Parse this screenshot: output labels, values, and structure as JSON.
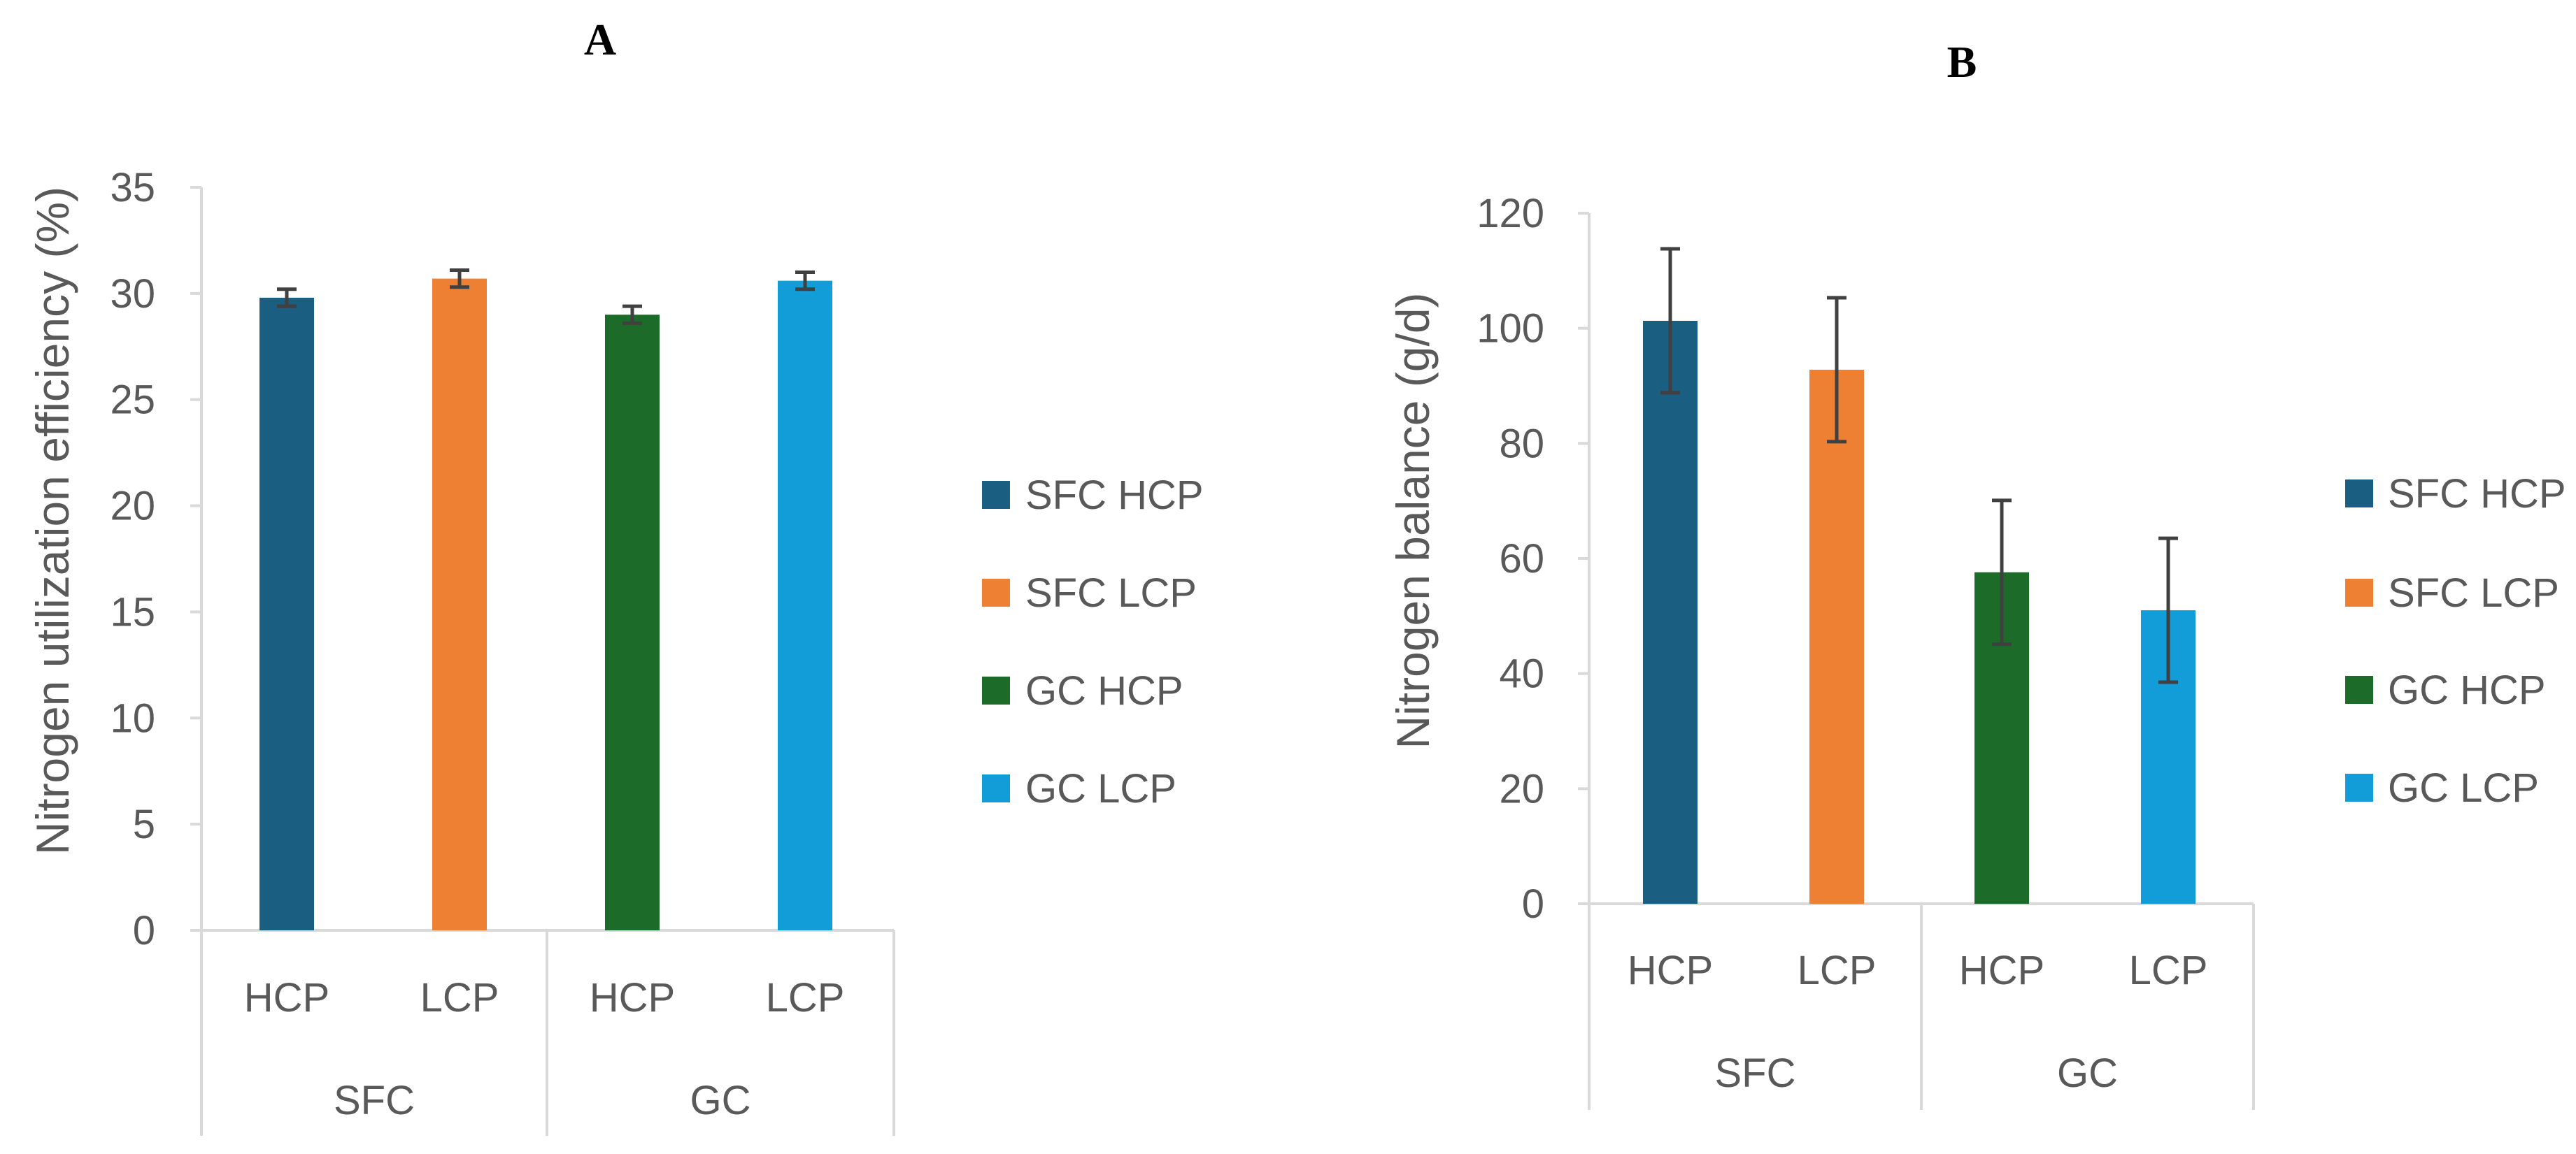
{
  "chart_data": [
    {
      "type": "bar",
      "panel_label": "A",
      "title": "",
      "xlabel": "",
      "ylabel": "Nitrogen utilization efficiency (%)",
      "ylim": [
        0,
        35
      ],
      "yticks": [
        0,
        5,
        10,
        15,
        20,
        25,
        30,
        35
      ],
      "grid": false,
      "legend_position": "right",
      "groups": [
        {
          "label": "SFC",
          "categories": [
            "HCP",
            "LCP"
          ]
        },
        {
          "label": "GC",
          "categories": [
            "HCP",
            "LCP"
          ]
        }
      ],
      "series": [
        {
          "name": "SFC HCP",
          "color": "#1a5e82",
          "value": 29.8,
          "error": 0.4
        },
        {
          "name": "SFC LCP",
          "color": "#ee8033",
          "value": 30.7,
          "error": 0.4
        },
        {
          "name": "GC HCP",
          "color": "#1c6b29",
          "value": 29.0,
          "error": 0.4
        },
        {
          "name": "GC LCP",
          "color": "#129dd8",
          "value": 30.6,
          "error": 0.4
        }
      ]
    },
    {
      "type": "bar",
      "panel_label": "B",
      "title": "",
      "xlabel": "",
      "ylabel": "Nitrogen balance (g/d)",
      "ylim": [
        0,
        120
      ],
      "yticks": [
        0,
        20,
        40,
        60,
        80,
        100,
        120
      ],
      "grid": false,
      "legend_position": "right",
      "groups": [
        {
          "label": "SFC",
          "categories": [
            "HCP",
            "LCP"
          ]
        },
        {
          "label": "GC",
          "categories": [
            "HCP",
            "LCP"
          ]
        }
      ],
      "series": [
        {
          "name": "SFC HCP",
          "color": "#1a5e82",
          "value": 101.3,
          "error": 12.5
        },
        {
          "name": "SFC LCP",
          "color": "#ee8033",
          "value": 92.8,
          "error": 12.5
        },
        {
          "name": "GC HCP",
          "color": "#1c6b29",
          "value": 57.6,
          "error": 12.5
        },
        {
          "name": "GC LCP",
          "color": "#129dd8",
          "value": 51.0,
          "error": 12.5
        }
      ]
    }
  ]
}
